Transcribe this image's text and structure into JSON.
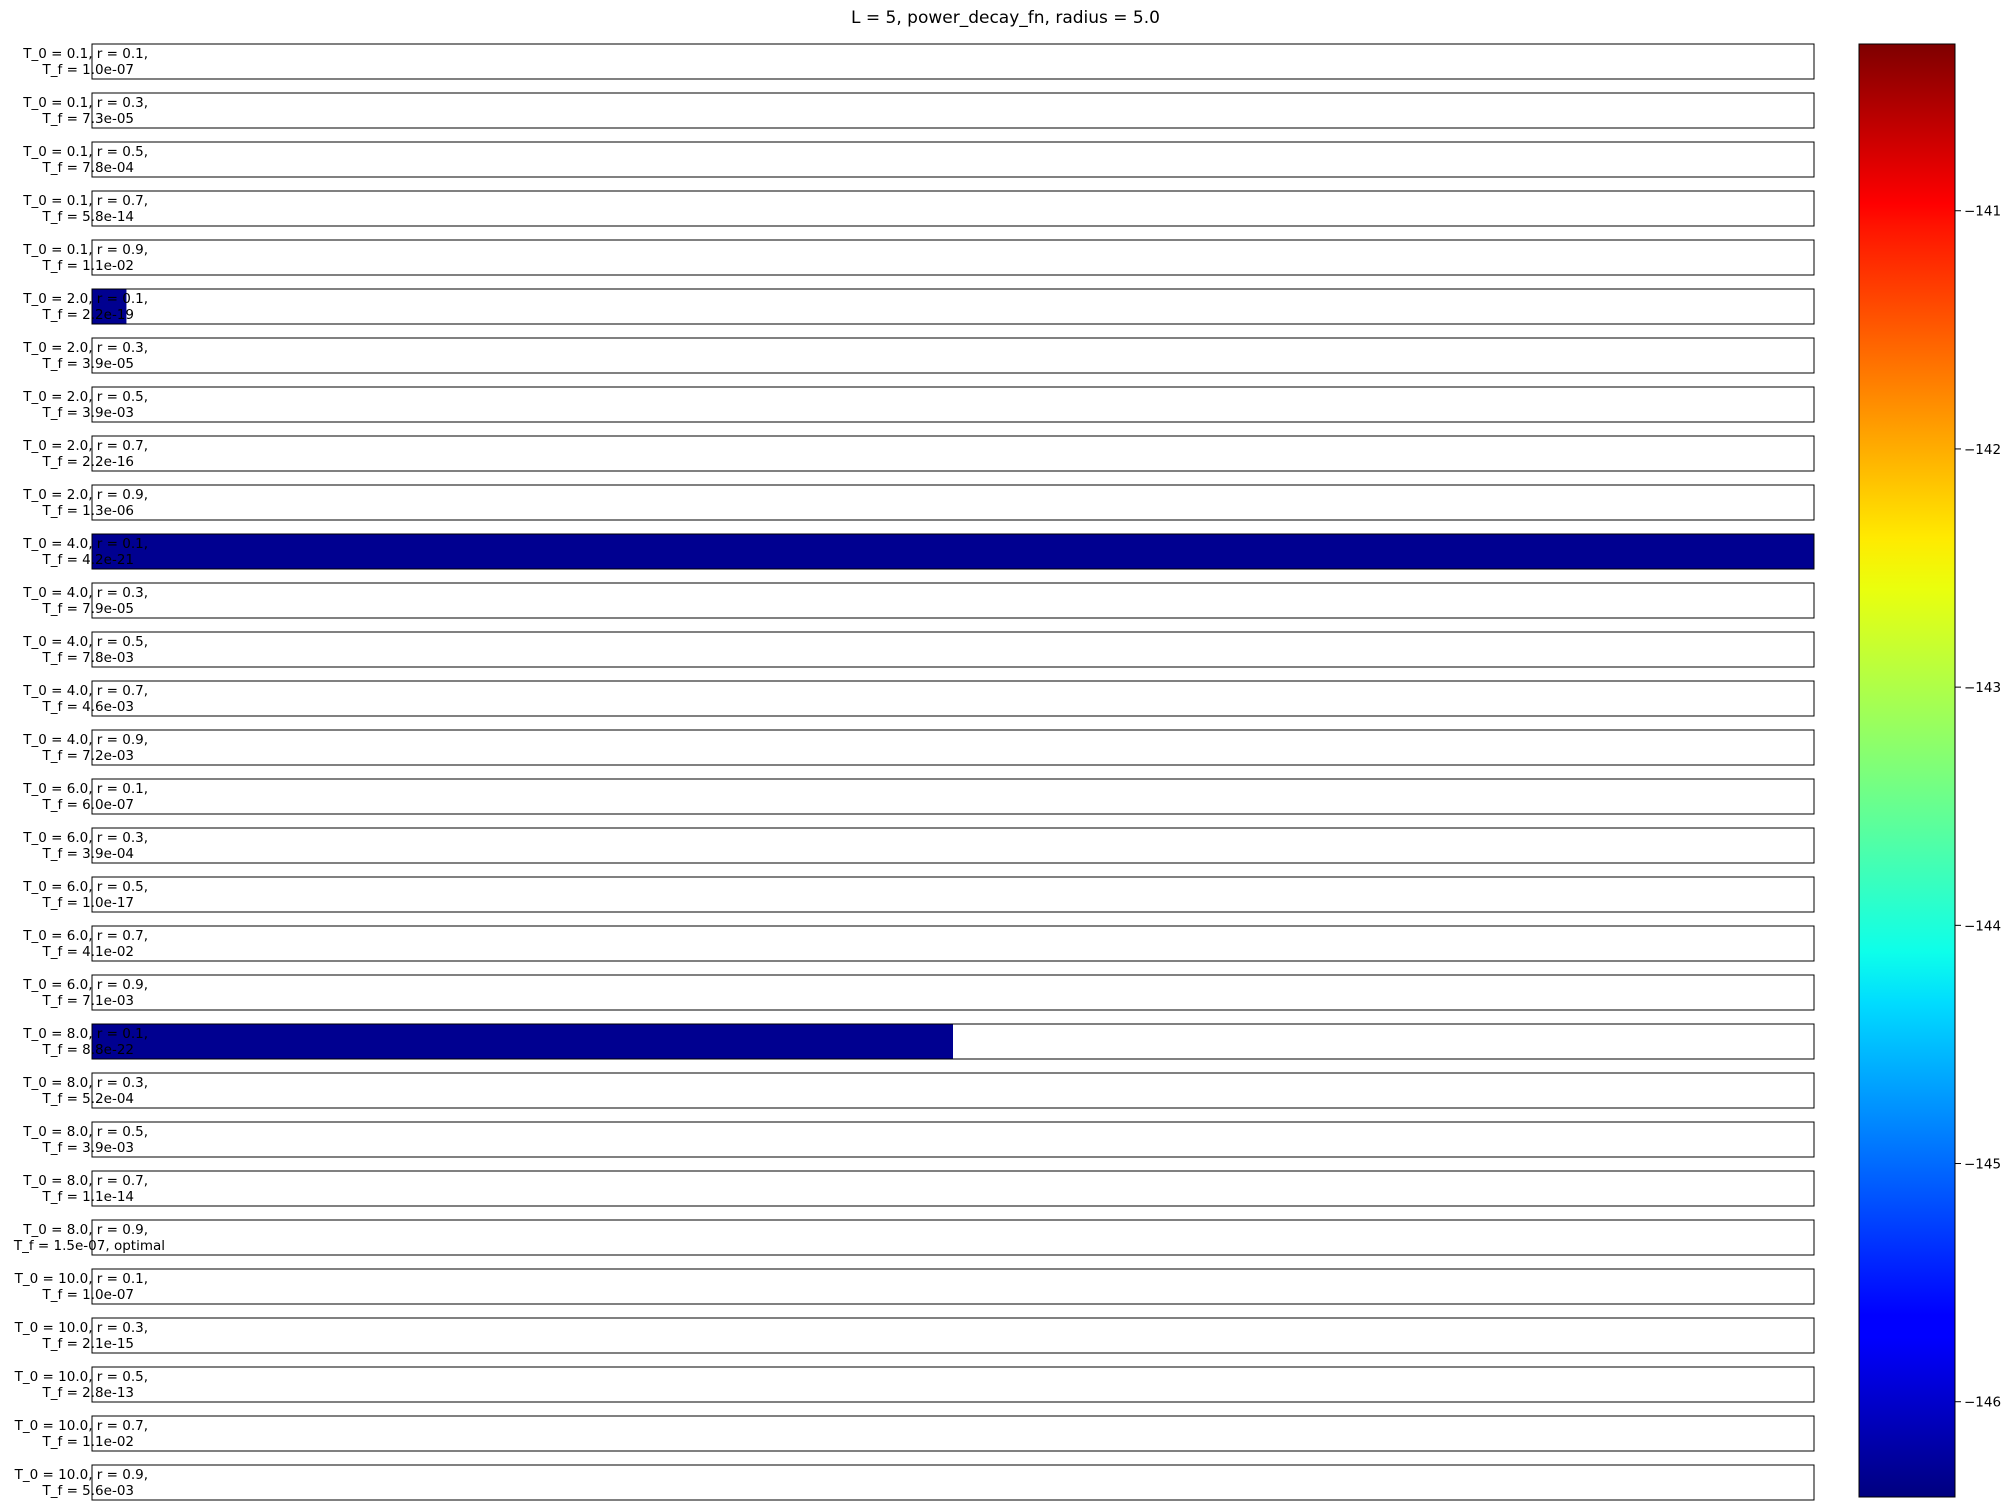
{
  "chart_data": {
    "type": "heatmap",
    "title": "L = 5, power_decay_fn, radius = 5.0",
    "xlabel": "",
    "ylabel": "",
    "colormap": "jet",
    "colorbar": {
      "vmin": -146.4,
      "vmax": -140.3,
      "ticks": [
        -146,
        -145,
        -144,
        -143,
        -142,
        -141
      ],
      "tick_labels": [
        "−146",
        "−145",
        "−144",
        "−143",
        "−142",
        "−141"
      ]
    },
    "rows": [
      {
        "line1": "T_0 = 0.1, r = 0.1,",
        "line2": "T_f = 1.0e-07",
        "fill_fraction": 0,
        "value": null
      },
      {
        "line1": "T_0 = 0.1, r = 0.3,",
        "line2": "T_f = 7.3e-05",
        "fill_fraction": 0,
        "value": null
      },
      {
        "line1": "T_0 = 0.1, r = 0.5,",
        "line2": "T_f = 7.8e-04",
        "fill_fraction": 0,
        "value": null
      },
      {
        "line1": "T_0 = 0.1, r = 0.7,",
        "line2": "T_f = 5.8e-14",
        "fill_fraction": 0,
        "value": null
      },
      {
        "line1": "T_0 = 0.1, r = 0.9,",
        "line2": "T_f = 1.1e-02",
        "fill_fraction": 0,
        "value": null
      },
      {
        "line1": "T_0 = 2.0, r = 0.1,",
        "line2": "T_f = 2.2e-19",
        "fill_fraction": 0.02,
        "value": -146.3
      },
      {
        "line1": "T_0 = 2.0, r = 0.3,",
        "line2": "T_f = 3.9e-05",
        "fill_fraction": 0,
        "value": null
      },
      {
        "line1": "T_0 = 2.0, r = 0.5,",
        "line2": "T_f = 3.9e-03",
        "fill_fraction": 0,
        "value": null
      },
      {
        "line1": "T_0 = 2.0, r = 0.7,",
        "line2": "T_f = 2.2e-16",
        "fill_fraction": 0,
        "value": null
      },
      {
        "line1": "T_0 = 2.0, r = 0.9,",
        "line2": "T_f = 1.3e-06",
        "fill_fraction": 0,
        "value": null
      },
      {
        "line1": "T_0 = 4.0, r = 0.1,",
        "line2": "T_f = 4.2e-21",
        "fill_fraction": 1.0,
        "value": -146.3
      },
      {
        "line1": "T_0 = 4.0, r = 0.3,",
        "line2": "T_f = 7.9e-05",
        "fill_fraction": 0,
        "value": null
      },
      {
        "line1": "T_0 = 4.0, r = 0.5,",
        "line2": "T_f = 7.8e-03",
        "fill_fraction": 0,
        "value": null
      },
      {
        "line1": "T_0 = 4.0, r = 0.7,",
        "line2": "T_f = 4.6e-03",
        "fill_fraction": 0,
        "value": null
      },
      {
        "line1": "T_0 = 4.0, r = 0.9,",
        "line2": "T_f = 7.2e-03",
        "fill_fraction": 0,
        "value": null
      },
      {
        "line1": "T_0 = 6.0, r = 0.1,",
        "line2": "T_f = 6.0e-07",
        "fill_fraction": 0,
        "value": null
      },
      {
        "line1": "T_0 = 6.0, r = 0.3,",
        "line2": "T_f = 3.9e-04",
        "fill_fraction": 0,
        "value": null
      },
      {
        "line1": "T_0 = 6.0, r = 0.5,",
        "line2": "T_f = 1.0e-17",
        "fill_fraction": 0,
        "value": null
      },
      {
        "line1": "T_0 = 6.0, r = 0.7,",
        "line2": "T_f = 4.1e-02",
        "fill_fraction": 0,
        "value": null
      },
      {
        "line1": "T_0 = 6.0, r = 0.9,",
        "line2": "T_f = 7.1e-03",
        "fill_fraction": 0,
        "value": null
      },
      {
        "line1": "T_0 = 8.0, r = 0.1,",
        "line2": "T_f = 8.8e-22",
        "fill_fraction": 0.5,
        "value": -146.3
      },
      {
        "line1": "T_0 = 8.0, r = 0.3,",
        "line2": "T_f = 5.2e-04",
        "fill_fraction": 0,
        "value": null
      },
      {
        "line1": "T_0 = 8.0, r = 0.5,",
        "line2": "T_f = 3.9e-03",
        "fill_fraction": 0,
        "value": null
      },
      {
        "line1": "T_0 = 8.0, r = 0.7,",
        "line2": "T_f = 1.1e-14",
        "fill_fraction": 0,
        "value": null
      },
      {
        "line1": "T_0 = 8.0, r = 0.9,",
        "line2": "T_f = 1.5e-07, optimal",
        "fill_fraction": 0,
        "value": null
      },
      {
        "line1": "T_0 = 10.0, r = 0.1,",
        "line2": "T_f = 1.0e-07",
        "fill_fraction": 0,
        "value": null
      },
      {
        "line1": "T_0 = 10.0, r = 0.3,",
        "line2": "T_f = 2.1e-15",
        "fill_fraction": 0,
        "value": null
      },
      {
        "line1": "T_0 = 10.0, r = 0.5,",
        "line2": "T_f = 2.8e-13",
        "fill_fraction": 0,
        "value": null
      },
      {
        "line1": "T_0 = 10.0, r = 0.7,",
        "line2": "T_f = 1.1e-02",
        "fill_fraction": 0,
        "value": null
      },
      {
        "line1": "T_0 = 10.0, r = 0.9,",
        "line2": "T_f = 5.6e-03",
        "fill_fraction": 0,
        "value": null
      }
    ]
  }
}
